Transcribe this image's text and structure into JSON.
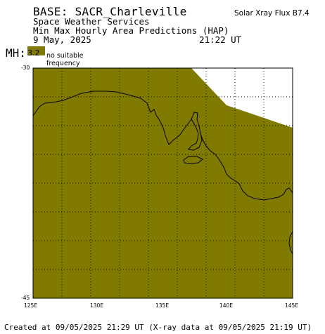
{
  "header": {
    "base_label": "BASE: SACR_Charleville",
    "org": "Space Weather Services",
    "product": "Min Max Hourly Area Predictions (HAP)",
    "date": "9 May, 2025",
    "time": "21:22 UT",
    "flux": "Solar Xray Flux B7.4"
  },
  "legend": {
    "mh_label": "MH:",
    "mh_value": "3.2",
    "no_freq_label": "no suitable frequency",
    "fill_color": "#807a00"
  },
  "map": {
    "lat_labels": [
      "-30",
      "-45"
    ],
    "lon_labels": [
      "125E",
      "130E",
      "135E",
      "140E",
      "145E"
    ],
    "lon_range": [
      125,
      145
    ],
    "lat_range": [
      -30,
      -45
    ],
    "grid": true,
    "grid_color": "#000000"
  },
  "footer": {
    "created": "Created at 09/05/2025 21:29 UT (X-ray data at 09/05/2025 21:19 UT)"
  }
}
